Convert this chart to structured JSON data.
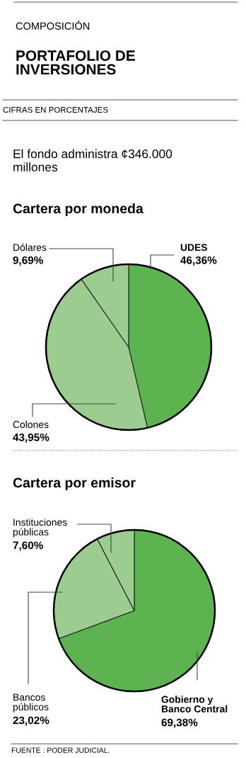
{
  "chart_data": [
    {
      "type": "pie",
      "title": "Cartera por moneda",
      "annotations": [
        "COMPOSICIÓN",
        "PORTAFOLIO DE\nINVERSIONES",
        "CIFRAS EN PORCENTAJES",
        "El fondo administra ¢346.000\nmillones"
      ],
      "categories": [
        "UDES",
        "Colones",
        "Dólares"
      ],
      "values": [
        46.36,
        43.95,
        9.69
      ],
      "value_labels": [
        "46,36%",
        "43,95%",
        "9,69%"
      ],
      "colors": [
        "#5cb350",
        "#9ccc8f",
        "#9ccc8f"
      ]
    },
    {
      "type": "pie",
      "title": "Cartera por emisor",
      "annotations": [
        "FUENTE : PODER JUDICIAL."
      ],
      "categories": [
        "Gobierno y\nBanco Central",
        "Bancos\npúblicos",
        "Instituciones\npúblicas"
      ],
      "values": [
        69.38,
        23.02,
        7.6
      ],
      "value_labels": [
        "69,38%",
        "23,02%",
        "7,60%"
      ],
      "colors": [
        "#5cb350",
        "#9ccc8f",
        "#9ccc8f"
      ]
    }
  ]
}
